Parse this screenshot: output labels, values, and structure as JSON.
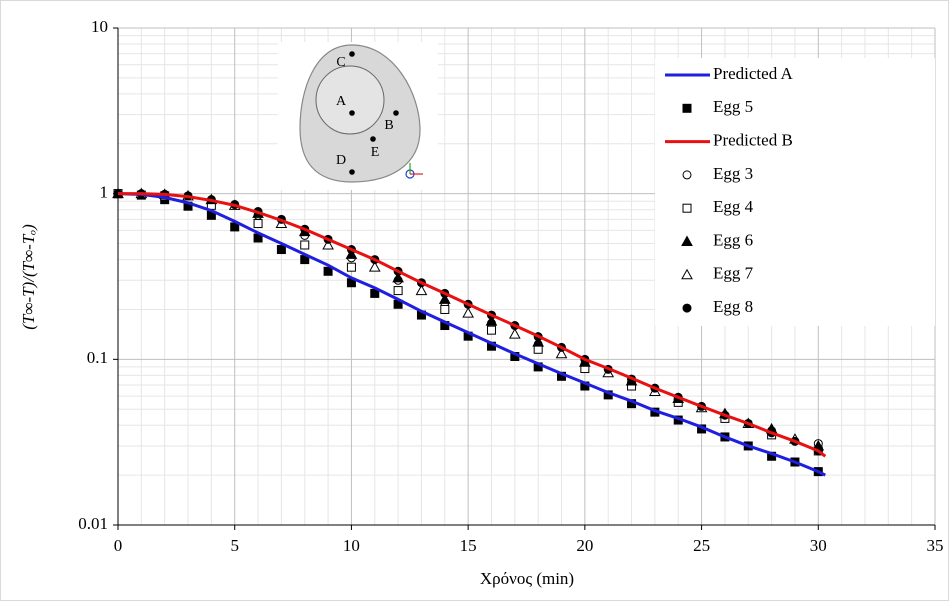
{
  "chart_data": {
    "type": "line",
    "x_label": "Χρόνος (min)",
    "y_label": "(T∞-T)/(T∞-Tₒ)",
    "xlim": [
      0,
      35
    ],
    "xticks": [
      0,
      5,
      10,
      15,
      20,
      25,
      30,
      35
    ],
    "ylim": [
      0.01,
      10
    ],
    "yticks": [
      0.01,
      0.1,
      1,
      10
    ],
    "log_y": true,
    "grid": true,
    "minor_grid": true,
    "legend": "right",
    "inset_labels": [
      "C",
      "A",
      "B",
      "E",
      "D"
    ],
    "series": [
      {
        "name": "Predicted A",
        "color": "#1f1fe0",
        "style": "line",
        "x": [
          0,
          1,
          2,
          3,
          4,
          5,
          6,
          7,
          8,
          9,
          10,
          11,
          12,
          13,
          14,
          15,
          16,
          17,
          18,
          19,
          20,
          21,
          22,
          23,
          24,
          25,
          26,
          27,
          28,
          29,
          30,
          30.3
        ],
        "values": [
          1,
          0.99,
          0.95,
          0.88,
          0.79,
          0.68,
          0.58,
          0.5,
          0.43,
          0.37,
          0.31,
          0.27,
          0.23,
          0.195,
          0.168,
          0.145,
          0.125,
          0.108,
          0.094,
          0.082,
          0.072,
          0.063,
          0.056,
          0.049,
          0.044,
          0.039,
          0.034,
          0.03,
          0.027,
          0.024,
          0.021,
          0.02
        ]
      },
      {
        "name": "Egg 5",
        "color": "#000000",
        "style": "marker",
        "marker": "square",
        "filled": true,
        "x": [
          0,
          1,
          2,
          3,
          4,
          5,
          6,
          7,
          8,
          9,
          10,
          11,
          12,
          13,
          14,
          15,
          16,
          17,
          18,
          19,
          20,
          21,
          22,
          23,
          24,
          25,
          26,
          27,
          28,
          29,
          30
        ],
        "values": [
          1,
          0.98,
          0.92,
          0.84,
          0.74,
          0.63,
          0.54,
          0.46,
          0.4,
          0.34,
          0.29,
          0.25,
          0.215,
          0.185,
          0.16,
          0.138,
          0.12,
          0.104,
          0.09,
          0.079,
          0.069,
          0.061,
          0.054,
          0.048,
          0.043,
          0.038,
          0.034,
          0.03,
          0.026,
          0.024,
          0.021
        ]
      },
      {
        "name": "Predicted B",
        "color": "#e81010",
        "style": "line",
        "x": [
          0,
          1,
          2,
          3,
          4,
          5,
          6,
          7,
          8,
          9,
          10,
          11,
          12,
          13,
          14,
          15,
          16,
          17,
          18,
          19,
          20,
          21,
          22,
          23,
          24,
          25,
          26,
          27,
          28,
          29,
          30,
          30.3
        ],
        "values": [
          1,
          1,
          0.99,
          0.96,
          0.91,
          0.85,
          0.77,
          0.69,
          0.61,
          0.53,
          0.46,
          0.4,
          0.34,
          0.29,
          0.25,
          0.215,
          0.185,
          0.16,
          0.138,
          0.118,
          0.1,
          0.088,
          0.077,
          0.067,
          0.059,
          0.052,
          0.046,
          0.041,
          0.036,
          0.032,
          0.028,
          0.026
        ]
      },
      {
        "name": "Egg 3",
        "color": "#000000",
        "style": "marker",
        "marker": "circle",
        "filled": false,
        "x": [
          0,
          2,
          4,
          6,
          8,
          10,
          12,
          14,
          16,
          18,
          20,
          22,
          24,
          26,
          28,
          30
        ],
        "values": [
          1,
          0.99,
          0.9,
          0.74,
          0.56,
          0.41,
          0.3,
          0.22,
          0.165,
          0.123,
          0.093,
          0.072,
          0.057,
          0.045,
          0.037,
          0.031
        ]
      },
      {
        "name": "Egg 4",
        "color": "#000000",
        "style": "marker",
        "marker": "square",
        "filled": false,
        "x": [
          0,
          2,
          4,
          6,
          8,
          10,
          12,
          14,
          16,
          18,
          20,
          22,
          24,
          26,
          28,
          30
        ],
        "values": [
          1,
          0.97,
          0.85,
          0.66,
          0.49,
          0.36,
          0.26,
          0.2,
          0.15,
          0.115,
          0.088,
          0.069,
          0.055,
          0.044,
          0.035,
          0.028
        ]
      },
      {
        "name": "Egg 6",
        "color": "#000000",
        "style": "marker",
        "marker": "triangle",
        "filled": true,
        "x": [
          0,
          2,
          4,
          6,
          8,
          10,
          12,
          14,
          16,
          18,
          20,
          22,
          24,
          26,
          28,
          30
        ],
        "values": [
          1,
          0.99,
          0.92,
          0.76,
          0.59,
          0.43,
          0.31,
          0.23,
          0.17,
          0.127,
          0.096,
          0.074,
          0.058,
          0.047,
          0.038,
          0.03
        ]
      },
      {
        "name": "Egg 7",
        "color": "#000000",
        "style": "marker",
        "marker": "triangle",
        "filled": false,
        "x": [
          1,
          3,
          5,
          7,
          9,
          11,
          13,
          15,
          17,
          19,
          21,
          23,
          25,
          27,
          29
        ],
        "values": [
          1,
          0.97,
          0.85,
          0.66,
          0.49,
          0.36,
          0.26,
          0.19,
          0.142,
          0.108,
          0.083,
          0.064,
          0.051,
          0.041,
          0.033
        ]
      },
      {
        "name": "Egg 8",
        "color": "#000000",
        "style": "marker",
        "marker": "circle",
        "filled": true,
        "x": [
          0,
          1,
          2,
          3,
          4,
          5,
          6,
          7,
          8,
          9,
          10,
          11,
          12,
          13,
          14,
          15,
          16,
          17,
          18,
          19,
          20,
          21,
          22,
          23,
          24,
          25,
          26,
          27,
          28,
          29,
          30
        ],
        "values": [
          1,
          1,
          0.99,
          0.97,
          0.92,
          0.86,
          0.78,
          0.7,
          0.61,
          0.53,
          0.46,
          0.4,
          0.34,
          0.29,
          0.25,
          0.215,
          0.185,
          0.16,
          0.137,
          0.118,
          0.1,
          0.087,
          0.076,
          0.067,
          0.059,
          0.052,
          0.046,
          0.041,
          0.036,
          0.032,
          0.028
        ]
      }
    ]
  }
}
